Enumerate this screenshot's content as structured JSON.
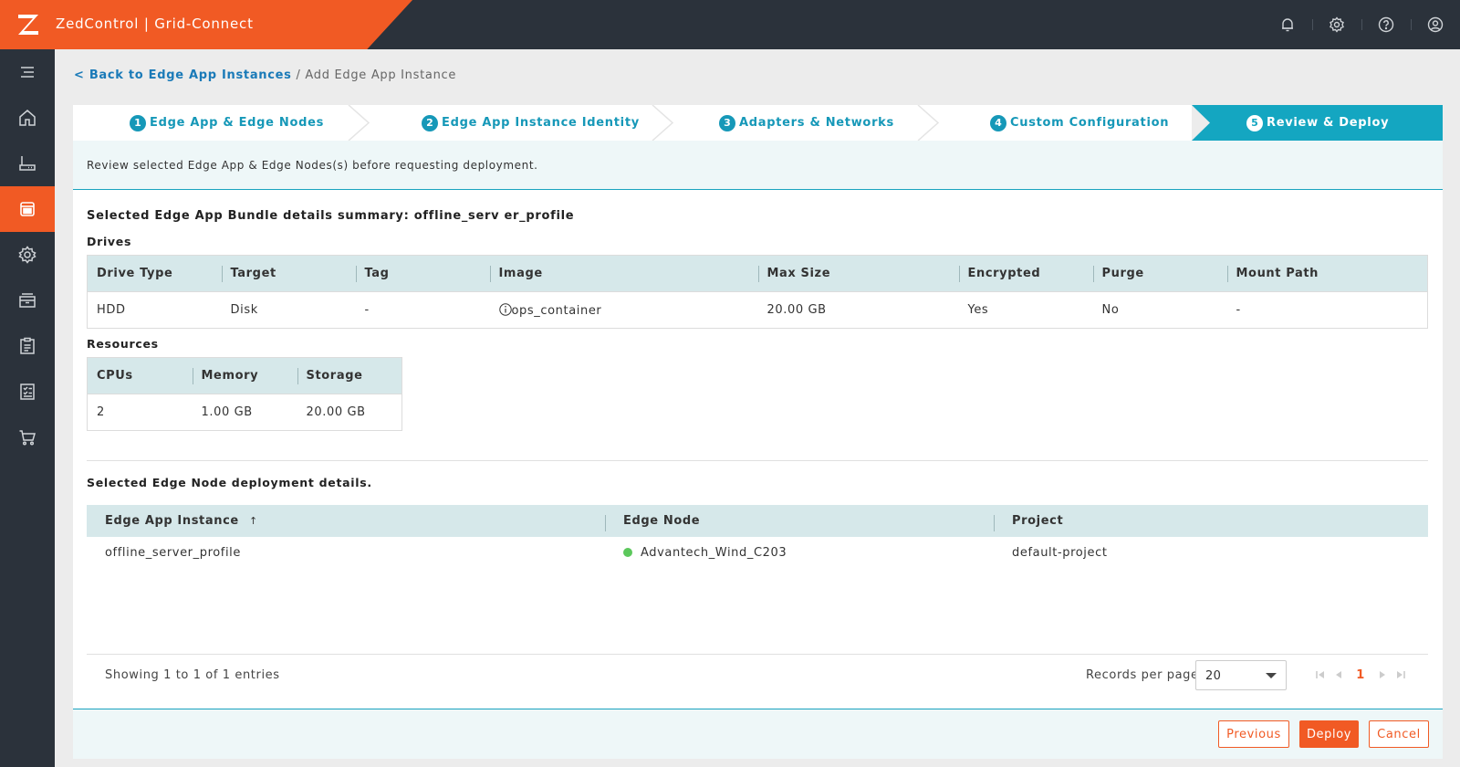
{
  "header": {
    "app_title": "ZedControl | Grid-Connect",
    "icons": [
      "bell-icon",
      "gear-icon",
      "help-icon",
      "user-icon"
    ]
  },
  "sidebar": {
    "items": [
      {
        "icon": "menu-icon"
      },
      {
        "icon": "home-icon"
      },
      {
        "icon": "edge-node-icon"
      },
      {
        "icon": "edge-app-icon",
        "active": true
      },
      {
        "icon": "network-icon"
      },
      {
        "icon": "storage-icon"
      },
      {
        "icon": "clipboard-icon"
      },
      {
        "icon": "checklist-icon"
      },
      {
        "icon": "cart-icon"
      }
    ]
  },
  "breadcrumb": {
    "back_link": "< Back to Edge App Instances",
    "separator": " / ",
    "current": "Add Edge App Instance"
  },
  "steps": [
    {
      "num": "1",
      "label": "Edge App & Edge Nodes"
    },
    {
      "num": "2",
      "label": "Edge App Instance Identity"
    },
    {
      "num": "3",
      "label": "Adapters & Networks"
    },
    {
      "num": "4",
      "label": "Custom Configuration"
    },
    {
      "num": "5",
      "label": "Review & Deploy",
      "active": true
    }
  ],
  "review": {
    "info_text": "Review selected Edge App & Edge Nodes(s) before requesting deployment.",
    "bundle_summary": "Selected Edge App Bundle details summary: offline_serv er_profile",
    "drives": {
      "title": "Drives",
      "headers": [
        "Drive Type",
        "Target",
        "Tag",
        "Image",
        "Max Size",
        "Encrypted",
        "Purge",
        "Mount Path"
      ],
      "rows": [
        {
          "drive_type": "HDD",
          "target": "Disk",
          "tag": "-",
          "image": "ops_container",
          "max_size": "20.00 GB",
          "encrypted": "Yes",
          "purge": "No",
          "mount_path": "-"
        }
      ]
    },
    "resources": {
      "title": "Resources",
      "headers": [
        "CPUs",
        "Memory",
        "Storage"
      ],
      "rows": [
        {
          "cpus": "2",
          "memory": "1.00 GB",
          "storage": "20.00 GB"
        }
      ]
    },
    "deployment": {
      "title": "Selected Edge Node deployment details.",
      "headers": [
        "Edge App Instance",
        "Edge Node",
        "Project"
      ],
      "sort_indicator": "↑",
      "rows": [
        {
          "instance": "offline_server_profile",
          "node": "Advantech_Wind_C203",
          "status_color": "#5cc85c",
          "project": "default-project"
        }
      ]
    },
    "pagination": {
      "showing": "Showing 1 to 1 of 1 entries",
      "records_label": "Records per page",
      "records_value": "20",
      "current_page": "1"
    }
  },
  "footer": {
    "previous_label": "Previous",
    "deploy_label": "Deploy",
    "cancel_label": "Cancel"
  },
  "colors": {
    "accent": "#f15a24",
    "teal": "#14a6c1",
    "dark": "#2b323b",
    "online": "#5cc85c"
  }
}
